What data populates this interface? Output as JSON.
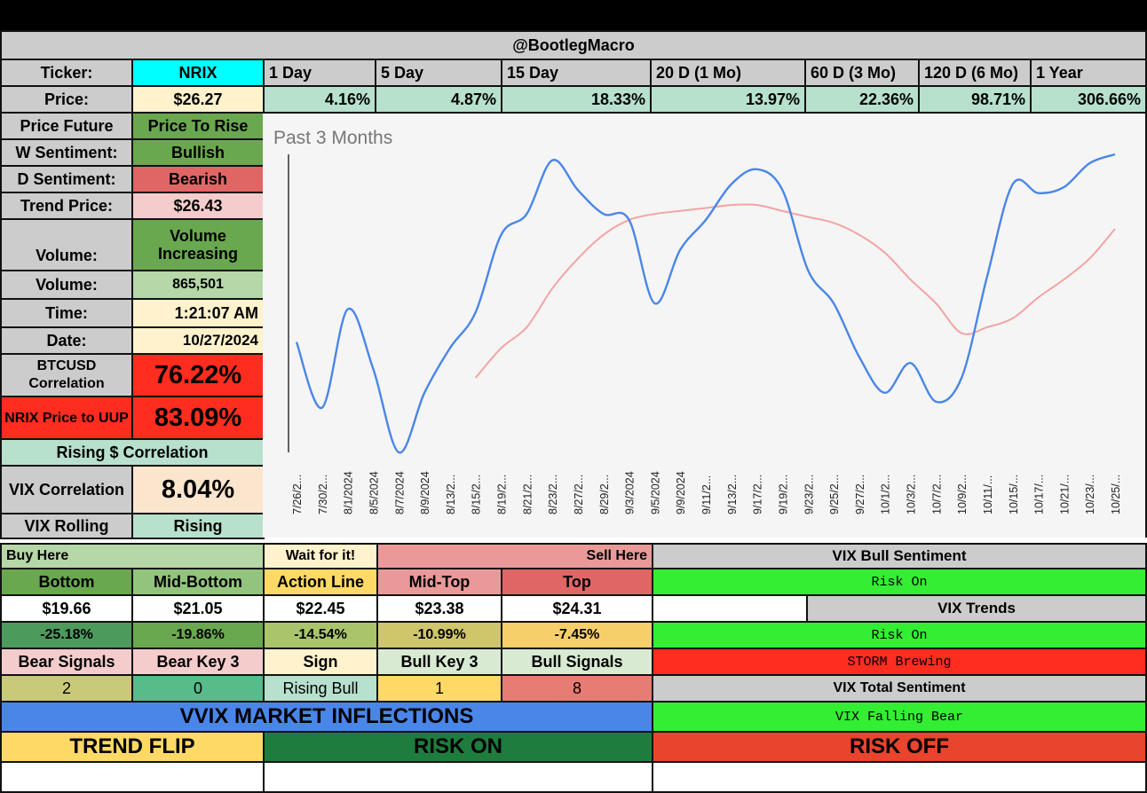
{
  "header": {
    "title": "@BootlegMacro"
  },
  "left": {
    "ticker_label": "Ticker:",
    "ticker": "NRIX",
    "price_label": "Price:",
    "price": "$26.27",
    "future_label": "Price Future",
    "future": "Price To Rise",
    "w_label": "W Sentiment:",
    "w": "Bullish",
    "d_label": "D Sentiment:",
    "d": "Bearish",
    "trend_label": "Trend Price:",
    "trend": "$26.43",
    "vol_trend_label": "Volume:",
    "vol_trend": "Volume Increasing",
    "volume_label": "Volume:",
    "volume": "865,501",
    "time_label": "Time:",
    "time": "1:21:07 AM",
    "date_label": "Date:",
    "date": "10/27/2024",
    "btc_label": "BTCUSD Correlation",
    "btc": "76.22%",
    "uup_label": "NRIX Price to UUP",
    "uup": "83.09%",
    "rising": "Rising $ Correlation",
    "vix_corr_label": "VIX Correlation",
    "vix_corr": "8.04%",
    "vix_roll_label": "VIX Rolling",
    "vix_roll": "Rising"
  },
  "periods": [
    {
      "label": "1 Day",
      "value": "4.16%"
    },
    {
      "label": "5 Day",
      "value": "4.87%"
    },
    {
      "label": "15 Day",
      "value": "18.33%"
    },
    {
      "label": "20 D (1 Mo)",
      "value": "13.97%"
    },
    {
      "label": "60 D (3 Mo)",
      "value": "22.36%"
    },
    {
      "label": "120 D (6 Mo)",
      "value": "98.71%"
    },
    {
      "label": "1 Year",
      "value": "306.66%"
    }
  ],
  "levels": {
    "buy_here": "Buy Here",
    "wait": "Wait for it!",
    "sell_here": "Sell Here",
    "headers": [
      "Bottom",
      "Mid-Bottom",
      "Action Line",
      "Mid-Top",
      "Top"
    ],
    "prices": [
      "$19.66",
      "$21.05",
      "$22.45",
      "$23.38",
      "$24.31"
    ],
    "pcts": [
      "-25.18%",
      "-19.86%",
      "-14.54%",
      "-10.99%",
      "-7.45%"
    ],
    "signal_headers": [
      "Bear Signals",
      "Bear Key 3",
      "Sign",
      "Bull Key 3",
      "Bull Signals"
    ],
    "signal_values": [
      "2",
      "0",
      "Rising Bull",
      "1",
      "8"
    ]
  },
  "vix": {
    "bull_title": "VIX Bull Sentiment",
    "bull": "Risk On",
    "trends_title": "VIX Trends",
    "trend1": "Risk On",
    "trend2": "STORM Brewing",
    "total_title": "VIX Total Sentiment",
    "total": "VIX Falling Bear"
  },
  "bottom": {
    "inflections": "VVIX MARKET INFLECTIONS",
    "trend_flip": "TREND FLIP",
    "risk_on": "RISK ON",
    "risk_off": "RISK OFF"
  },
  "colors": {
    "gray": "#cccccc",
    "cyan": "#00ffff",
    "light_yellow": "#fff2cc",
    "mint": "#b7e1cd",
    "green": "#6aa84f",
    "red": "#e06666",
    "pink": "#f4cccc",
    "light_green": "#b6d7a8",
    "bright_red": "#ff2d1f",
    "peach": "#fce5cd",
    "lime": "#33ee33",
    "blue": "#4a86e8",
    "gold": "#ffd966",
    "dark_green": "#1e7d3e",
    "orange_red": "#e8442e",
    "price_line": "#4a86e8",
    "ma_line": "#f4a3a3"
  },
  "chart_data": {
    "type": "line",
    "title": "Past 3 Months",
    "xlabel": "",
    "ylabel": "",
    "x": [
      "7/26/2...",
      "7/30/2...",
      "8/1/2024",
      "8/5/2024",
      "8/7/2024",
      "8/9/2024",
      "8/13/2...",
      "8/15/2...",
      "8/19/2...",
      "8/21/2...",
      "8/23/2...",
      "8/27/2...",
      "8/29/2...",
      "9/3/2024",
      "9/5/2024",
      "9/9/2024",
      "9/11/2...",
      "9/13/2...",
      "9/17/2...",
      "9/19/2...",
      "9/23/2...",
      "9/25/2...",
      "9/27/2...",
      "10/1/2...",
      "10/3/2...",
      "10/7/2...",
      "10/9/2...",
      "10/11/...",
      "10/15/...",
      "10/17/...",
      "10/21/...",
      "10/23/...",
      "10/25/..."
    ],
    "ylim": [
      0,
      100
    ],
    "series": [
      {
        "values": [
          37,
          15,
          48,
          28,
          0,
          20,
          35,
          47,
          73,
          80,
          98,
          88,
          80,
          78,
          50,
          68,
          78,
          90,
          95,
          88,
          61,
          50,
          32,
          20,
          30,
          17,
          25,
          59,
          90,
          87,
          89,
          97,
          100
        ]
      },
      {
        "values": [
          null,
          null,
          null,
          null,
          null,
          null,
          null,
          25,
          35,
          42,
          55,
          65,
          73,
          78,
          80,
          81,
          82,
          83,
          83,
          81,
          79,
          77,
          73,
          67,
          58,
          50,
          40,
          42,
          45,
          52,
          58,
          65,
          75
        ]
      }
    ]
  }
}
